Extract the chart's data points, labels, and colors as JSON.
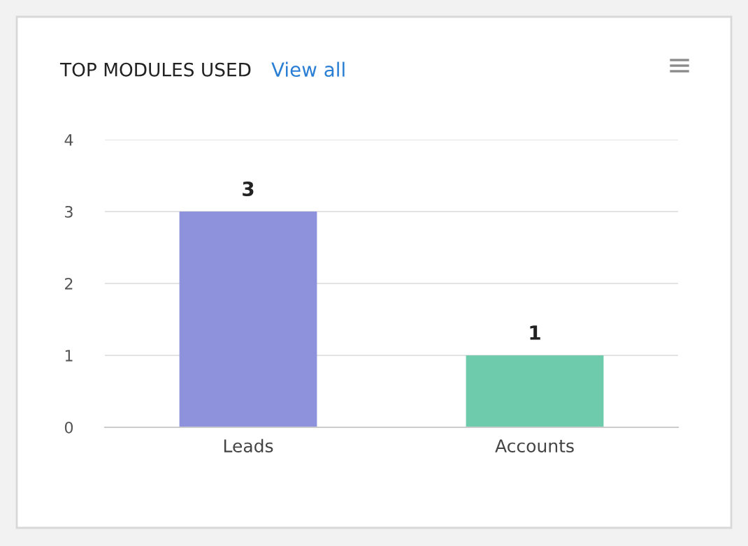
{
  "chart_data": {
    "type": "bar",
    "title": "TOP MODULES USED",
    "annotations": [
      "View all"
    ],
    "categories": [
      "Leads",
      "Accounts"
    ],
    "values": [
      3,
      1
    ],
    "colors": [
      "#8e92dc",
      "#6ecbab"
    ],
    "ylim": [
      0,
      4
    ],
    "yticks": [
      0,
      1,
      2,
      3,
      4
    ],
    "grid": "y",
    "data_labels": true
  }
}
